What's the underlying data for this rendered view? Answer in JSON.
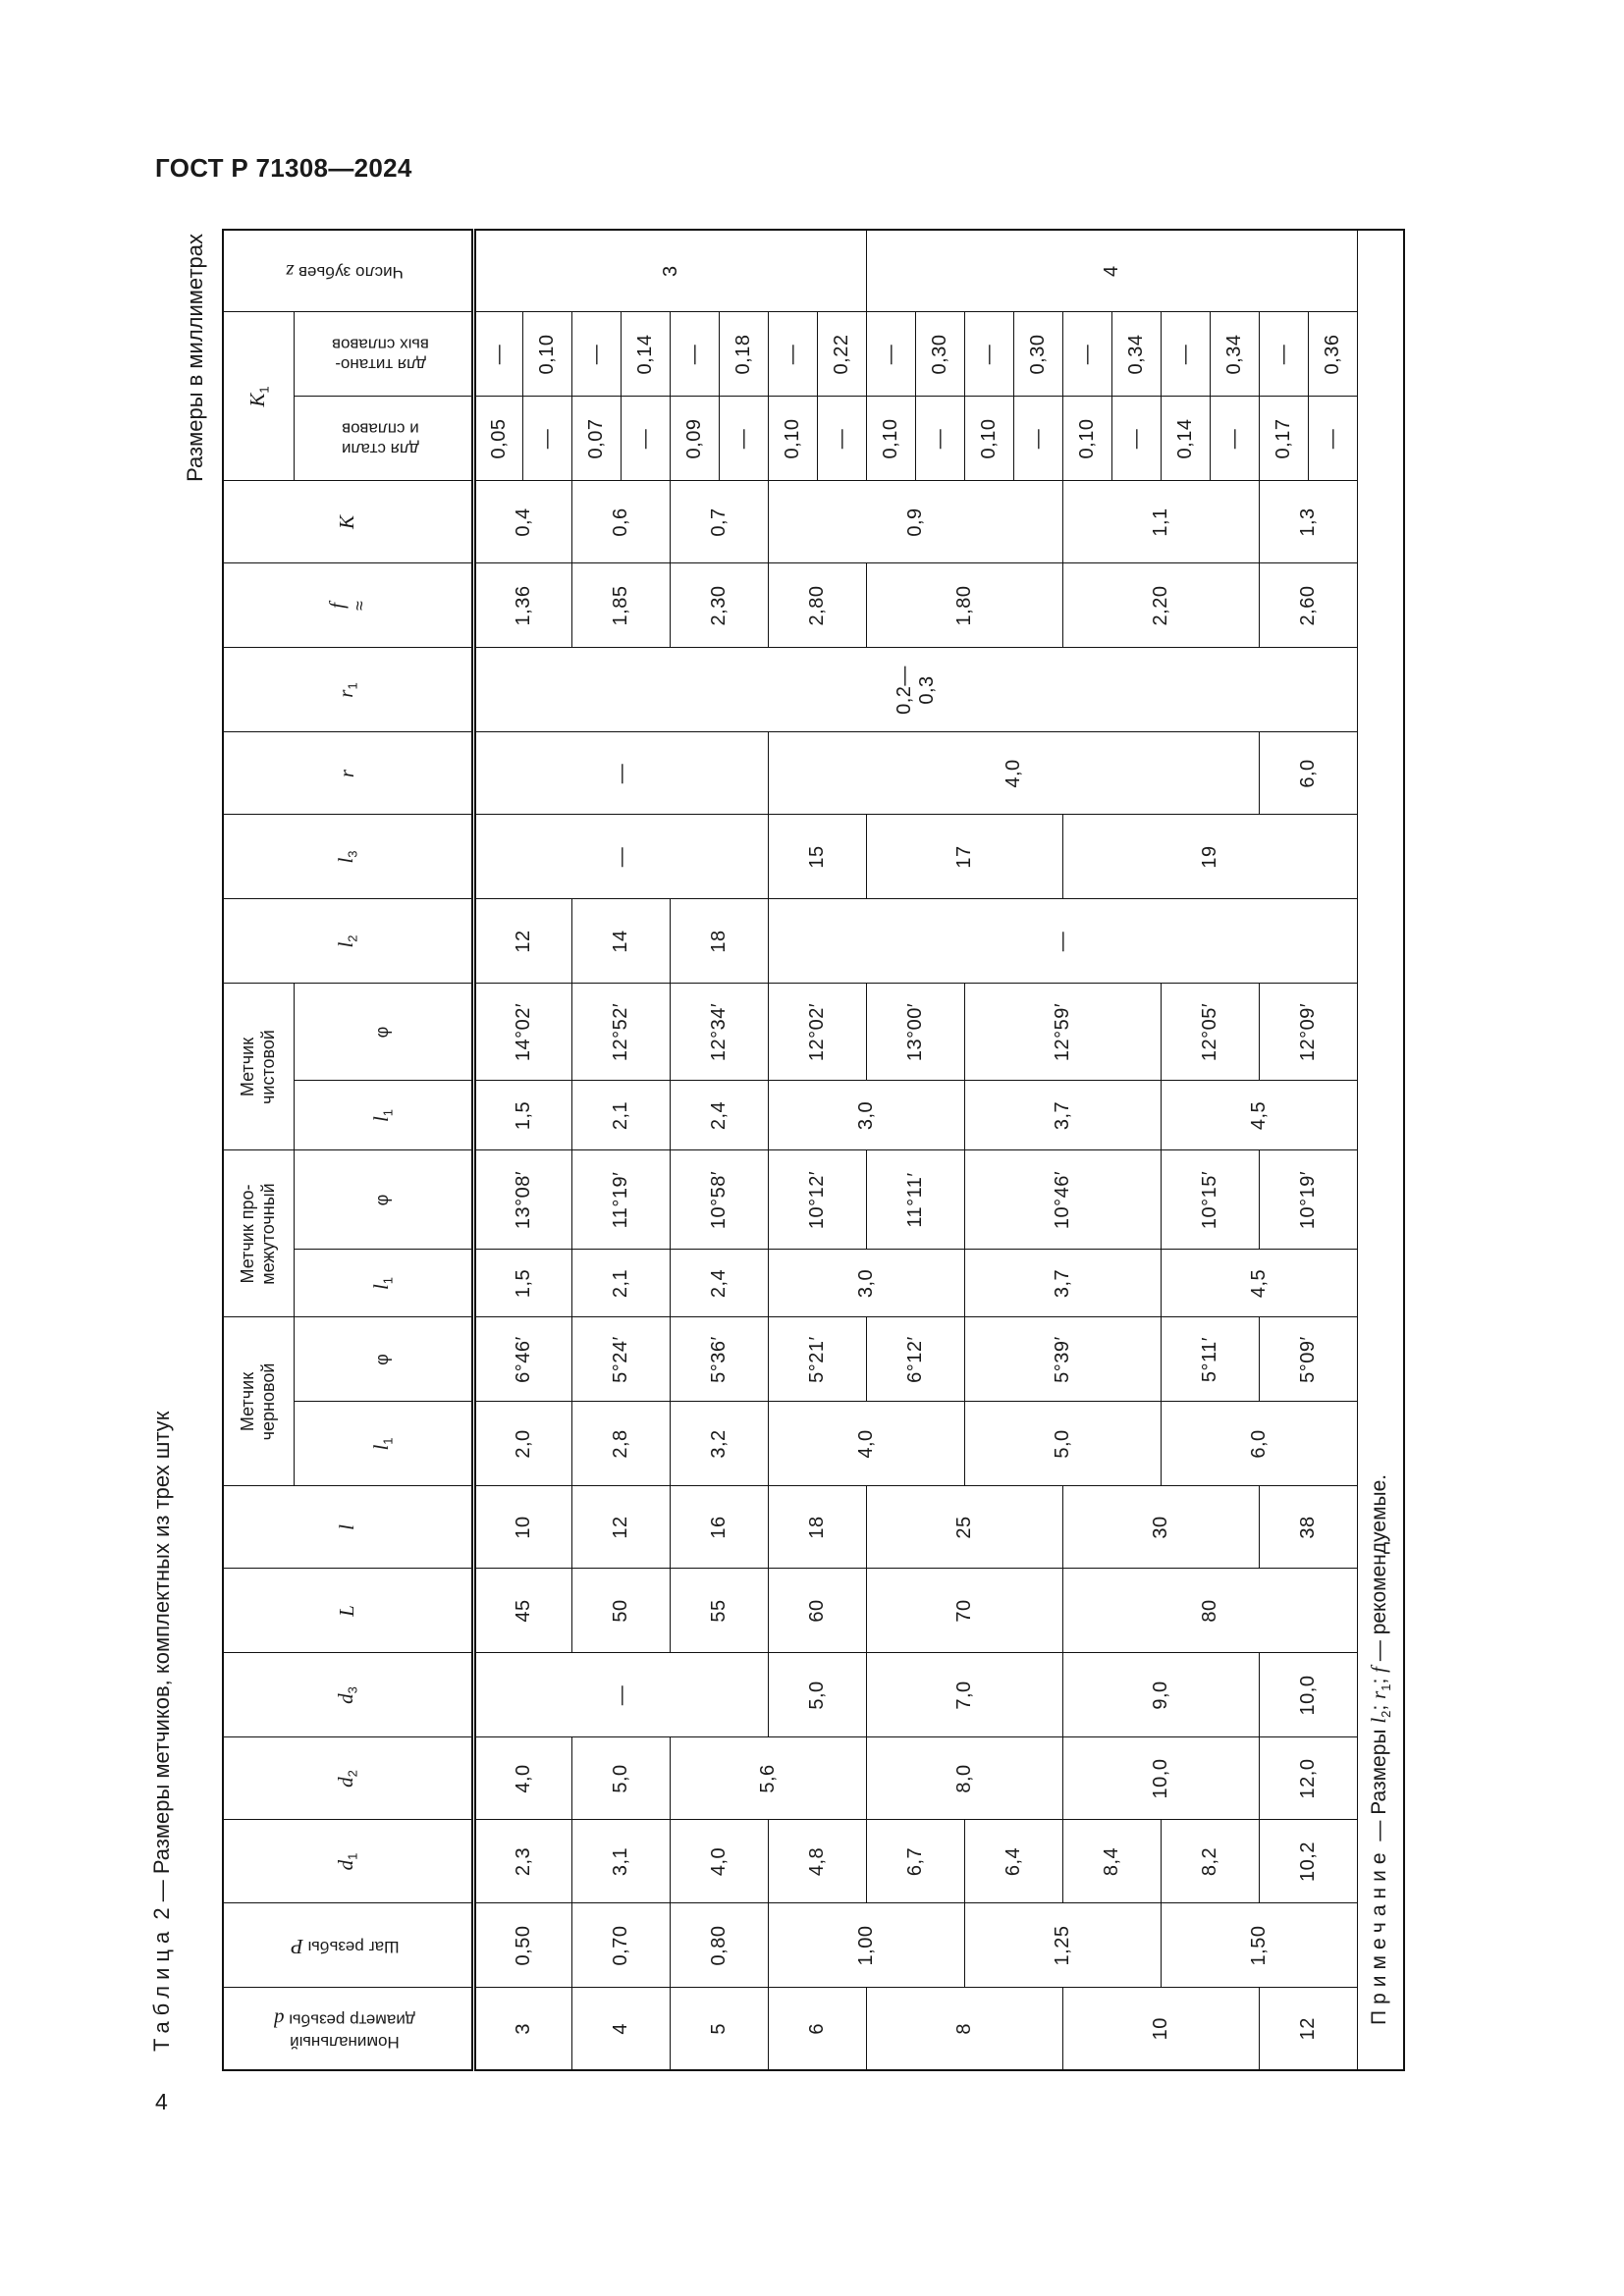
{
  "header": {
    "doc_id": "ГОСТ Р 71308—2024"
  },
  "page_number": "4",
  "table": {
    "caption_label": "Таблица",
    "caption_text": "2 — Размеры метчиков, комплектных из трех штук",
    "units": "Размеры в миллиметрах",
    "headers": {
      "d": {
        "text": "Номинальный\nдиаметр резьбы",
        "sym": "d"
      },
      "P": {
        "text": "Шаг резьбы",
        "sym": "P"
      },
      "d1": {
        "sym": "d",
        "sub": "1"
      },
      "d2": {
        "sym": "d",
        "sub": "2"
      },
      "d3": {
        "sym": "d",
        "sub": "3"
      },
      "L": {
        "sym": "L"
      },
      "l": {
        "sym": "l"
      },
      "rough": "Метчик\nчерновой",
      "intermediate": "Метчик про-\nмежуточный",
      "finishing": "Метчик\nчистовой",
      "l1": {
        "sym": "l",
        "sub": "1"
      },
      "phi": "φ",
      "l2": {
        "sym": "l",
        "sub": "2"
      },
      "l3": {
        "sym": "l",
        "sub": "3"
      },
      "r": {
        "sym": "r"
      },
      "r1": {
        "sym": "r",
        "sub": "1"
      },
      "f": {
        "sym": "f",
        "approx": "≈"
      },
      "K": {
        "sym": "K"
      },
      "K1": {
        "sym": "K",
        "sub": "1"
      },
      "K1_steel": "для стали\nи сплавов",
      "K1_ti": "для титано-\nвых сплавов",
      "z": {
        "text": "Число зубьев",
        "sym": "z"
      }
    },
    "body": {
      "d": [
        [
          "3",
          2
        ],
        [
          "4",
          2
        ],
        [
          "5",
          2
        ],
        [
          "6",
          2
        ],
        [
          "8",
          4
        ],
        [
          "10",
          4
        ],
        [
          "12",
          2
        ]
      ],
      "P": [
        [
          "0,50",
          2
        ],
        [
          "0,70",
          2
        ],
        [
          "0,80",
          2
        ],
        [
          "1,00",
          4
        ],
        [
          "1,25",
          4
        ],
        [
          "1,50",
          4
        ]
      ],
      "d1": [
        [
          "2,3",
          2
        ],
        [
          "3,1",
          2
        ],
        [
          "4,0",
          2
        ],
        [
          "4,8",
          2
        ],
        [
          "6,7",
          2
        ],
        [
          "6,4",
          2
        ],
        [
          "8,4",
          2
        ],
        [
          "8,2",
          2
        ],
        [
          "10,2",
          2
        ]
      ],
      "d2": [
        [
          "4,0",
          2
        ],
        [
          "5,0",
          2
        ],
        [
          "5,6",
          4
        ],
        [
          "8,0",
          4
        ],
        [
          "10,0",
          4
        ],
        [
          "12,0",
          2
        ]
      ],
      "d3": [
        [
          "—",
          6
        ],
        [
          "5,0",
          2
        ],
        [
          "7,0",
          4
        ],
        [
          "9,0",
          4
        ],
        [
          "10,0",
          2
        ]
      ],
      "L": [
        [
          "45",
          2
        ],
        [
          "50",
          2
        ],
        [
          "55",
          2
        ],
        [
          "60",
          2
        ],
        [
          "70",
          4
        ],
        [
          "80",
          6
        ]
      ],
      "l": [
        [
          "10",
          2
        ],
        [
          "12",
          2
        ],
        [
          "16",
          2
        ],
        [
          "18",
          2
        ],
        [
          "25",
          4
        ],
        [
          "30",
          4
        ],
        [
          "38",
          2
        ]
      ],
      "rough_l1": [
        [
          "2,0",
          2
        ],
        [
          "2,8",
          2
        ],
        [
          "3,2",
          2
        ],
        [
          "4,0",
          4
        ],
        [
          "5,0",
          4
        ],
        [
          "6,0",
          4
        ]
      ],
      "rough_phi": [
        [
          "6°46′",
          2
        ],
        [
          "5°24′",
          2
        ],
        [
          "5°36′",
          2
        ],
        [
          "5°21′",
          2
        ],
        [
          "6°12′",
          2
        ],
        [
          "5°39′",
          4
        ],
        [
          "5°11′",
          2
        ],
        [
          "5°09′",
          2
        ]
      ],
      "inter_l1": [
        [
          "1,5",
          2
        ],
        [
          "2,1",
          2
        ],
        [
          "2,4",
          2
        ],
        [
          "3,0",
          4
        ],
        [
          "3,7",
          4
        ],
        [
          "4,5",
          4
        ]
      ],
      "inter_phi": [
        [
          "13°08′",
          2
        ],
        [
          "11°19′",
          2
        ],
        [
          "10°58′",
          2
        ],
        [
          "10°12′",
          2
        ],
        [
          "11°11′",
          2
        ],
        [
          "10°46′",
          4
        ],
        [
          "10°15′",
          2
        ],
        [
          "10°19′",
          2
        ]
      ],
      "fin_l1": [
        [
          "1,5",
          2
        ],
        [
          "2,1",
          2
        ],
        [
          "2,4",
          2
        ],
        [
          "3,0",
          4
        ],
        [
          "3,7",
          4
        ],
        [
          "4,5",
          4
        ]
      ],
      "fin_phi": [
        [
          "14°02′",
          2
        ],
        [
          "12°52′",
          2
        ],
        [
          "12°34′",
          2
        ],
        [
          "12°02′",
          2
        ],
        [
          "13°00′",
          2
        ],
        [
          "12°59′",
          4
        ],
        [
          "12°05′",
          2
        ],
        [
          "12°09′",
          2
        ]
      ],
      "l2": [
        [
          "12",
          2
        ],
        [
          "14",
          2
        ],
        [
          "18",
          2
        ],
        [
          "—",
          12
        ]
      ],
      "l3": [
        [
          "—",
          6
        ],
        [
          "15",
          2
        ],
        [
          "17",
          4
        ],
        [
          "19",
          6
        ]
      ],
      "r": [
        [
          "—",
          6
        ],
        [
          "4,0",
          10
        ],
        [
          "6,0",
          2
        ]
      ],
      "r1": [
        [
          "0,2—\n0,3",
          18
        ]
      ],
      "f": [
        [
          "1,36",
          2
        ],
        [
          "1,85",
          2
        ],
        [
          "2,30",
          2
        ],
        [
          "2,80",
          2
        ],
        [
          "1,80",
          4
        ],
        [
          "2,20",
          4
        ],
        [
          "2,60",
          2
        ]
      ],
      "K": [
        [
          "0,4",
          2
        ],
        [
          "0,6",
          2
        ],
        [
          "0,7",
          2
        ],
        [
          "0,9",
          6
        ],
        [
          "1,1",
          4
        ],
        [
          "1,3",
          2
        ]
      ],
      "K1_steel": [
        [
          "0,05",
          1
        ],
        [
          "—",
          1
        ],
        [
          "0,07",
          1
        ],
        [
          "—",
          1
        ],
        [
          "0,09",
          1
        ],
        [
          "—",
          1
        ],
        [
          "0,10",
          1
        ],
        [
          "—",
          1
        ],
        [
          "0,10",
          1
        ],
        [
          "—",
          1
        ],
        [
          "0,10",
          1
        ],
        [
          "—",
          1
        ],
        [
          "0,10",
          1
        ],
        [
          "—",
          1
        ],
        [
          "0,14",
          1
        ],
        [
          "—",
          1
        ],
        [
          "0,17",
          1
        ],
        [
          "—",
          1
        ]
      ],
      "K1_ti": [
        [
          "—",
          1
        ],
        [
          "0,10",
          1
        ],
        [
          "—",
          1
        ],
        [
          "0,14",
          1
        ],
        [
          "—",
          1
        ],
        [
          "0,18",
          1
        ],
        [
          "—",
          1
        ],
        [
          "0,22",
          1
        ],
        [
          "—",
          1
        ],
        [
          "0,30",
          1
        ],
        [
          "—",
          1
        ],
        [
          "0,30",
          1
        ],
        [
          "—",
          1
        ],
        [
          "0,34",
          1
        ],
        [
          "—",
          1
        ],
        [
          "0,34",
          1
        ],
        [
          "—",
          1
        ],
        [
          "0,36",
          1
        ]
      ],
      "z": [
        [
          "3",
          8
        ],
        [
          "4",
          10
        ]
      ]
    },
    "note": {
      "label": "Примечание",
      "dash": " — Размеры ",
      "s1": "l",
      "s1_sub": "2",
      "sep1": "; ",
      "s2": "r",
      "s2_sub": "1",
      "sep2": "; ",
      "s3": "f",
      "end": " — рекомендуемые."
    }
  }
}
